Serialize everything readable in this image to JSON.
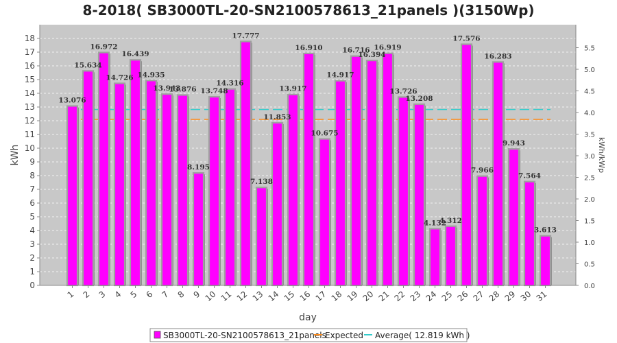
{
  "chart_data": {
    "type": "bar",
    "title": "8-2018( SB3000TL-20-SN2100578613_21panels )(3150Wp)",
    "xlabel": "day",
    "ylabel": "kWh",
    "y2label": "kWh/kWp",
    "ylim": [
      0,
      19
    ],
    "y2lim": [
      0,
      6.032
    ],
    "yticks": [
      "0",
      "1",
      "2",
      "3",
      "4",
      "5",
      "6",
      "7",
      "8",
      "9",
      "10",
      "11",
      "12",
      "13",
      "14",
      "15",
      "16",
      "17",
      "18"
    ],
    "y2ticks": [
      "0.0",
      "0.5",
      "1.0",
      "1.5",
      "2.0",
      "2.5",
      "3.0",
      "3.5",
      "4.0",
      "4.5",
      "5.0",
      "5.5"
    ],
    "categories": [
      "1",
      "2",
      "3",
      "4",
      "5",
      "6",
      "7",
      "8",
      "9",
      "10",
      "11",
      "12",
      "13",
      "14",
      "15",
      "16",
      "17",
      "18",
      "19",
      "20",
      "21",
      "22",
      "23",
      "24",
      "25",
      "26",
      "27",
      "28",
      "29",
      "30",
      "31"
    ],
    "series": [
      {
        "name": "SB3000TL-20-SN2100578613_21panels",
        "color": "#ff00ff",
        "values": [
          13.076,
          15.634,
          16.972,
          14.726,
          16.439,
          14.935,
          13.943,
          13.876,
          8.195,
          13.748,
          14.316,
          17.777,
          7.138,
          11.853,
          13.917,
          16.91,
          10.675,
          14.917,
          16.716,
          16.394,
          16.919,
          13.726,
          13.208,
          4.132,
          4.312,
          17.576,
          7.966,
          16.283,
          9.943,
          7.564,
          3.613
        ],
        "labels": [
          "13.076",
          "15.634",
          "16.972",
          "14.726",
          "16.439",
          "14.935",
          "13.943",
          "13.876",
          "8.195",
          "13.748",
          "14.316",
          "17.777",
          "7.138",
          "11.853",
          "13.917",
          "16.910",
          "10.675",
          "14.917",
          "16.716",
          "16.394",
          "16.919",
          "13.726",
          "13.208",
          "4.132",
          "4.312",
          "17.576",
          "7.966",
          "16.283",
          "9.943",
          "7.564",
          "3.613"
        ]
      }
    ],
    "expected": {
      "name": "Expected",
      "value": 12.1,
      "color": "#ff8c1a"
    },
    "average": {
      "name": "Average( 12.819 kWh )",
      "value": 12.819,
      "color": "#33cccc"
    },
    "grid": true,
    "legend_position": "bottom",
    "plot_background": "#c8c8c8"
  }
}
